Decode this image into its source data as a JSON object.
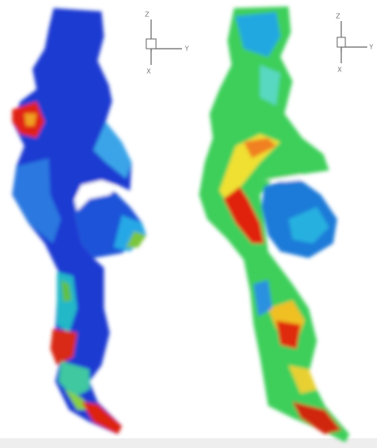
{
  "panels": [
    {
      "axes": {
        "z": "Z",
        "y": "Y",
        "x": "X"
      }
    },
    {
      "axes": {
        "z": "Z",
        "y": "Y",
        "x": "X"
      }
    }
  ]
}
